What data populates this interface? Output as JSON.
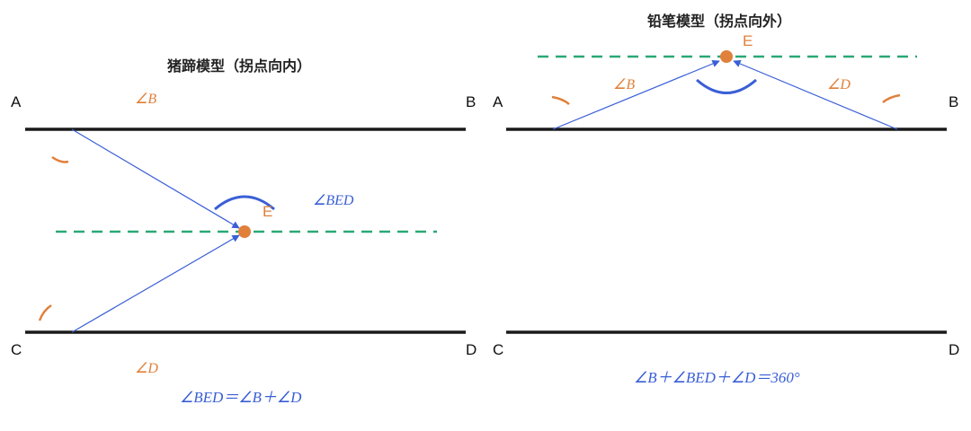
{
  "colors": {
    "accent_orange": "#e0803a",
    "accent_blue": "#3a5fd6",
    "dash_green": "#2aa876",
    "line_black": "#1a1a1a"
  },
  "left": {
    "title": "猪蹄模型（拐点向内）",
    "points": {
      "A": "A",
      "B": "B",
      "C": "C",
      "D": "D",
      "E": "E"
    },
    "angle_B": "∠B",
    "angle_D": "∠D",
    "angle_BED": "∠BED",
    "formula": "∠BED＝∠B＋∠D"
  },
  "right": {
    "title": "铅笔模型（拐点向外）",
    "points": {
      "A": "A",
      "B": "B",
      "C": "C",
      "D": "D",
      "E": "E"
    },
    "angle_B": "∠B",
    "angle_D": "∠D",
    "formula": "∠B＋∠BED＋∠D＝360°"
  }
}
